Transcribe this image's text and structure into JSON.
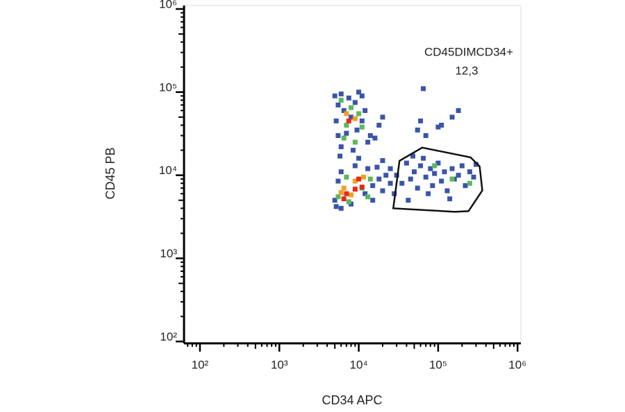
{
  "chart_data": {
    "type": "scatter",
    "x_label": "CD34 APC",
    "y_label": "CD45 PB",
    "log_x": true,
    "log_y": true,
    "xlim": [
      63,
      1100000
    ],
    "ylim": [
      95,
      1100000
    ],
    "xticks": [
      {
        "value": 100,
        "label": "10²"
      },
      {
        "value": 1000,
        "label": "10³"
      },
      {
        "value": 10000,
        "label": "10⁴"
      },
      {
        "value": 100000,
        "label": "10⁵"
      },
      {
        "value": 1000000,
        "label": "10⁶"
      }
    ],
    "yticks": [
      {
        "value": 100,
        "label": "10²"
      },
      {
        "value": 1000,
        "label": "10³"
      },
      {
        "value": 10000,
        "label": "10⁴"
      },
      {
        "value": 100000,
        "label": "10⁵"
      },
      {
        "value": 1000000,
        "label": "10⁶"
      }
    ],
    "series": [
      {
        "color": "#3a55a8",
        "x": [
          5000,
          6000,
          7500,
          10000,
          11000,
          5500,
          9000,
          6500,
          12000,
          5200,
          8000,
          11000,
          5500,
          7000,
          9500,
          14000,
          6000,
          8500,
          13000,
          16000,
          5800,
          10000,
          5000,
          5200,
          6000,
          8000,
          12000,
          15000,
          18000,
          20000,
          6000,
          9000,
          13000,
          17000,
          22000,
          25000,
          28000,
          5500,
          15000,
          20000,
          25000,
          30000,
          35000,
          40000,
          45000,
          50000,
          55000,
          60000,
          65000,
          70000,
          80000,
          85000,
          90000,
          100000,
          110000,
          120000,
          130000,
          150000,
          160000,
          180000,
          200000,
          220000,
          250000,
          280000,
          300000,
          42000,
          75000,
          140000,
          48000,
          65000,
          180000,
          150000,
          60000,
          55000,
          110000,
          70000,
          100000,
          20000,
          18000
        ],
        "values": [
          90000,
          95000,
          85000,
          100000,
          90000,
          70000,
          75000,
          60000,
          60000,
          45000,
          50000,
          45000,
          30000,
          32000,
          35000,
          30000,
          22000,
          20000,
          25000,
          28000,
          17000,
          16000,
          5000,
          4200,
          4000,
          4500,
          6000,
          7500,
          9000,
          6500,
          11000,
          13000,
          12000,
          12500,
          10000,
          8000,
          6000,
          8500,
          5000,
          15000,
          12000,
          10000,
          8000,
          14000,
          9000,
          11000,
          7000,
          13000,
          16000,
          9500,
          12000,
          7500,
          10500,
          14000,
          8500,
          11000,
          6500,
          12000,
          9000,
          10000,
          13000,
          7500,
          11000,
          9500,
          13500,
          5000,
          6000,
          5200,
          17000,
          110000,
          60000,
          50000,
          45000,
          35000,
          40000,
          30000,
          38000,
          50000,
          40000
        ]
      },
      {
        "color": "#5cb85c",
        "x": [
          6000,
          8000,
          10000,
          7000,
          11000,
          9000,
          6500,
          5500,
          7500,
          11000,
          14000,
          13000,
          7000,
          150000,
          90000,
          250000
        ],
        "values": [
          80000,
          65000,
          55000,
          40000,
          38000,
          25000,
          28000,
          5500,
          4800,
          7000,
          9000,
          5500,
          9500,
          9000,
          13000,
          8000
        ]
      },
      {
        "color": "#f0a020",
        "x": [
          7000,
          9000,
          6500,
          9000,
          11500,
          8000,
          6000
        ],
        "values": [
          55000,
          48000,
          7000,
          8500,
          9500,
          5800,
          6200
        ]
      },
      {
        "color": "#e8281e",
        "x": [
          7500,
          7000,
          9000,
          10000,
          6500,
          11000
        ],
        "values": [
          45000,
          6000,
          6800,
          9000,
          5200,
          7200
        ]
      }
    ],
    "gate": {
      "name": "CD45DIMCD34+",
      "value": 12.3,
      "value_label": "12,3",
      "x": [
        32600,
        63000,
        256000,
        333000,
        360000,
        241000,
        162000,
        27200
      ],
      "y": [
        14900,
        21500,
        16400,
        12800,
        6560,
        3700,
        3630,
        4000
      ]
    }
  }
}
